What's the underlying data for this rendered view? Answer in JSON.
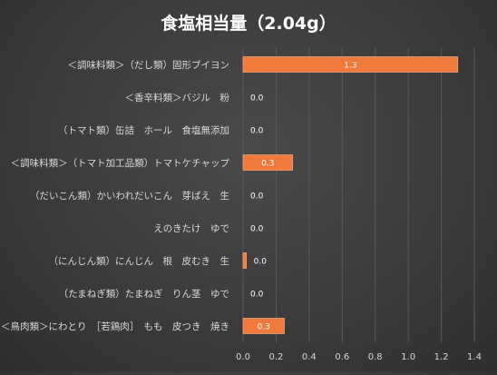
{
  "chart_data": {
    "type": "bar",
    "orientation": "horizontal",
    "title": "食塩相当量（2.04g）",
    "categories": [
      "＜調味料類＞（だし類）固形ブイヨン",
      "＜香辛料類＞バジル　粉",
      "（トマト類）缶詰　ホール　食塩無添加",
      "＜調味料類＞（トマト加工品類）トマトケチャップ",
      "（だいこん類）かいわれだいこん　芽ばえ　生",
      "えのきたけ　ゆで",
      "（にんじん類）にんじん　根　皮むき　生",
      "（たまねぎ類）たまねぎ　りん茎　ゆで",
      "＜鳥肉類＞にわとり　［若鶏肉］　もも　皮つき　焼き"
    ],
    "values": [
      1.3,
      0.0,
      0.0,
      0.3,
      0.0,
      0.0,
      0.02,
      0.0,
      0.25
    ],
    "value_labels": [
      "1.3",
      "0.0",
      "0.0",
      "0.3",
      "0.0",
      "0.0",
      "0.0",
      "0.0",
      "0.3"
    ],
    "xlim": [
      0,
      1.4
    ],
    "x_ticks": [
      "0.0",
      "0.2",
      "0.4",
      "0.6",
      "0.8",
      "1.0",
      "1.2",
      "1.4"
    ],
    "grid": true,
    "legend": "none",
    "colors": {
      "bar": "#f07a3c",
      "bar_edge": "#ffb48a",
      "grid": "#595959",
      "text": "#ffffff",
      "label_text": "#d9d9d9"
    }
  }
}
